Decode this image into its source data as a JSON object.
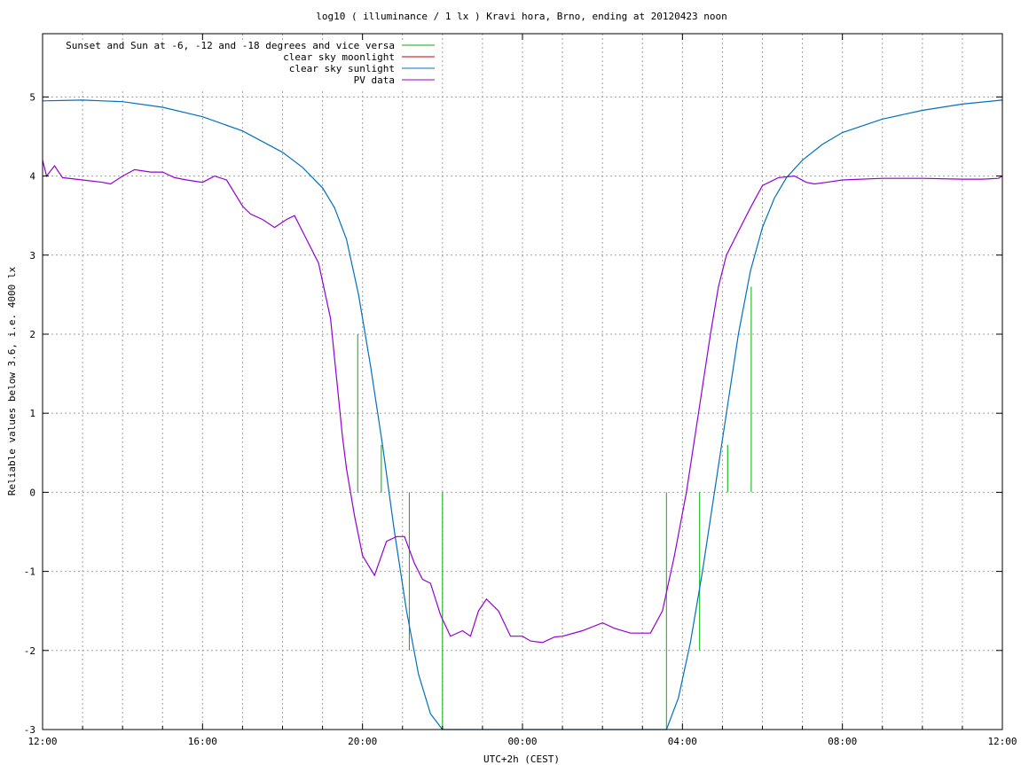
{
  "chart_data": {
    "type": "line",
    "title": "log10 ( illuminance / 1 lx ) Kravi hora, Brno, ending at 20120423 noon",
    "xlabel": "UTC+2h (CEST)",
    "ylabel": "Reliable values below 3.6, i.e. 4000 lx",
    "xlim": [
      0,
      24
    ],
    "ylim": [
      -3,
      5.8
    ],
    "x_ticks": [
      "12:00",
      "16:00",
      "20:00",
      "00:00",
      "04:00",
      "08:00",
      "12:00"
    ],
    "x_tick_hours": [
      0,
      4,
      8,
      12,
      16,
      20,
      24
    ],
    "y_ticks": [
      "5",
      "4",
      "3",
      "2",
      "1",
      "0",
      "-1",
      "-2",
      "-3"
    ],
    "y_tick_values": [
      5,
      4,
      3,
      2,
      1,
      0,
      -1,
      -2,
      -3
    ],
    "grid": true,
    "legend_position": "top-left",
    "legend": [
      {
        "label": "Sunset and Sun at -6, -12 and -18 degrees and vice versa",
        "color": "#00b000"
      },
      {
        "label": "clear sky moonlight",
        "color": "#c00000"
      },
      {
        "label": "clear sky sunlight",
        "color": "#0070c0"
      },
      {
        "label": "PV data",
        "color": "#9400d3"
      }
    ],
    "series": [
      {
        "name": "Sunset and Sun at -6, -12 and -18 degrees and vice versa",
        "kind": "vertical_markers",
        "color": "#00b000",
        "markers": [
          {
            "x": 7.88,
            "y": [
              0,
              2.0
            ]
          },
          {
            "x": 8.47,
            "y": [
              0,
              0.6
            ]
          },
          {
            "x": 9.17,
            "y": [
              -2.0,
              0
            ]
          },
          {
            "x": 10.0,
            "y": [
              -3,
              0
            ]
          },
          {
            "x": 15.6,
            "y": [
              -3,
              0
            ]
          },
          {
            "x": 16.43,
            "y": [
              -2.0,
              0
            ]
          },
          {
            "x": 17.13,
            "y": [
              0,
              0.6
            ]
          },
          {
            "x": 17.72,
            "y": [
              0,
              2.6
            ]
          }
        ]
      },
      {
        "name": "clear sky sunlight",
        "color": "#0070c0",
        "x": [
          0,
          1,
          2,
          3,
          4,
          5,
          6,
          6.5,
          7,
          7.3,
          7.6,
          7.9,
          8.2,
          8.5,
          8.8,
          9.1,
          9.4,
          9.7,
          10.0,
          15.6,
          15.9,
          16.2,
          16.5,
          16.8,
          17.1,
          17.4,
          17.7,
          18.0,
          18.3,
          18.6,
          19,
          19.5,
          20,
          21,
          22,
          23,
          24
        ],
        "y": [
          4.95,
          4.96,
          4.94,
          4.87,
          4.75,
          4.57,
          4.3,
          4.11,
          3.85,
          3.6,
          3.2,
          2.5,
          1.6,
          0.6,
          -0.5,
          -1.5,
          -2.3,
          -2.8,
          -3.0,
          -3.0,
          -2.6,
          -1.9,
          -1.0,
          0.0,
          1.0,
          2.0,
          2.8,
          3.35,
          3.72,
          3.98,
          4.2,
          4.4,
          4.55,
          4.72,
          4.83,
          4.91,
          4.96
        ]
      },
      {
        "name": "PV data",
        "color": "#9400d3",
        "x": [
          0,
          0.1,
          0.3,
          0.5,
          1,
          1.5,
          1.7,
          2,
          2.3,
          2.7,
          3,
          3.3,
          3.6,
          4,
          4.3,
          4.6,
          5,
          5.2,
          5.5,
          5.8,
          6.1,
          6.3,
          6.6,
          6.9,
          7.2,
          7.4,
          7.5,
          7.6,
          7.8,
          8,
          8.3,
          8.6,
          8.85,
          9.05,
          9.3,
          9.5,
          9.7,
          9.95,
          10.2,
          10.5,
          10.7,
          10.9,
          11.1,
          11.4,
          11.7,
          12,
          12.2,
          12.5,
          12.8,
          13,
          13.5,
          14,
          14.3,
          14.7,
          15.2,
          15.5,
          15.8,
          16.1,
          16.4,
          16.7,
          16.9,
          17.1,
          17.4,
          17.7,
          18.0,
          18.4,
          18.8,
          19.1,
          19.3,
          19.6,
          20,
          21,
          22,
          23,
          23.5,
          23.9,
          24
        ],
        "y": [
          4.2,
          4.0,
          4.13,
          3.98,
          3.95,
          3.92,
          3.9,
          4.0,
          4.08,
          4.05,
          4.05,
          3.98,
          3.95,
          3.92,
          4.0,
          3.95,
          3.62,
          3.52,
          3.45,
          3.35,
          3.45,
          3.5,
          3.2,
          2.9,
          2.2,
          1.2,
          0.7,
          0.3,
          -0.3,
          -0.8,
          -1.05,
          -0.62,
          -0.56,
          -0.56,
          -0.9,
          -1.1,
          -1.15,
          -1.55,
          -1.82,
          -1.75,
          -1.82,
          -1.5,
          -1.35,
          -1.5,
          -1.82,
          -1.82,
          -1.88,
          -1.9,
          -1.83,
          -1.82,
          -1.75,
          -1.65,
          -1.72,
          -1.78,
          -1.78,
          -1.5,
          -0.8,
          0.0,
          1.0,
          2.0,
          2.6,
          3.0,
          3.3,
          3.6,
          3.88,
          3.98,
          4.0,
          3.92,
          3.9,
          3.92,
          3.95,
          3.97,
          3.97,
          3.96,
          3.96,
          3.97,
          4.0
        ]
      },
      {
        "name": "clear sky moonlight",
        "color": "#c00000",
        "x": [],
        "y": []
      }
    ]
  }
}
